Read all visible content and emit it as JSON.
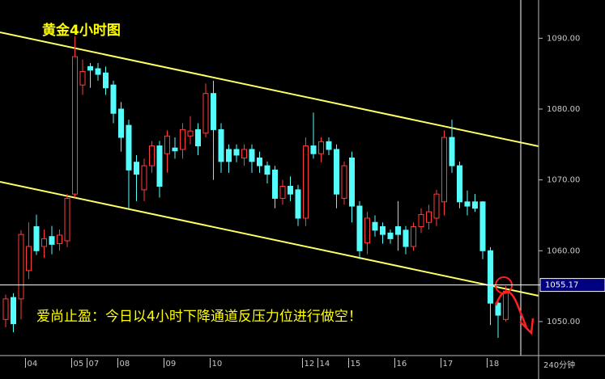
{
  "chart_data": {
    "type": "candlestick",
    "title": "黄金4小时图",
    "annotation": "爱尚止盈：今日以4小时下降通道反压力位进行做空！",
    "x_unit_label": "240分钟",
    "up_color": "#ff3c3c",
    "down_color": "#54fcfc",
    "categories": [
      null,
      null,
      null,
      "04",
      null,
      null,
      null,
      null,
      null,
      "05",
      null,
      "07",
      null,
      null,
      null,
      "08",
      null,
      null,
      null,
      null,
      null,
      "09",
      null,
      null,
      null,
      null,
      null,
      "10",
      null,
      null,
      null,
      null,
      null,
      null,
      null,
      null,
      null,
      null,
      null,
      "12",
      null,
      "14",
      null,
      null,
      null,
      "15",
      null,
      null,
      null,
      null,
      null,
      "16",
      null,
      null,
      null,
      null,
      null,
      "17",
      null,
      null,
      null,
      null,
      null,
      "18",
      null,
      null
    ],
    "open": [
      1050.3,
      1053.4,
      1053.2,
      1057.2,
      1063.4,
      1060.6,
      1062,
      1061,
      1061.4,
      1068,
      1083.4,
      1086,
      1085.7,
      1085.1,
      1083.4,
      1080,
      1077.7,
      1072.5,
      1068.6,
      1072,
      1074.8,
      1073.7,
      1074.5,
      1074.3,
      1076.2,
      1077.1,
      1076.6,
      1082.2,
      1077.1,
      1074.3,
      1074.3,
      1073.1,
      1074.3,
      1073.1,
      1072,
      1071.4,
      1067.4,
      1069.1,
      1068.6,
      1064.6,
      1074.8,
      1073.7,
      1075.4,
      1074.3,
      1067.4,
      1073.1,
      1066.3,
      1061.1,
      1064,
      1063.4,
      1062.5,
      1063.4,
      1062.9,
      1060.6,
      1063.4,
      1064,
      1064.6,
      1066.9,
      1076,
      1072,
      1066.9,
      1066.9,
      1066.9,
      1060,
      1052.6,
      1050.3
    ],
    "high": [
      1053.8,
      1054,
      1062.9,
      1064,
      1065.1,
      1063,
      1063.5,
      1063,
      1068,
      1090.3,
      1087,
      1086.5,
      1086.5,
      1086,
      1084,
      1081,
      1078.5,
      1073.5,
      1073,
      1075.5,
      1075.5,
      1077,
      1076,
      1078,
      1079,
      1078,
      1083.6,
      1084,
      1078,
      1075,
      1075,
      1075,
      1075,
      1074,
      1072.6,
      1072,
      1070,
      1070.5,
      1069.3,
      1076,
      1079.5,
      1076,
      1076,
      1075,
      1072.6,
      1074,
      1067,
      1065.5,
      1065,
      1064,
      1063,
      1067,
      1063.5,
      1064,
      1066,
      1066.5,
      1068.6,
      1077,
      1078.5,
      1072.6,
      1068.5,
      1068,
      1067,
      1060.5,
      1053,
      1055
    ],
    "low": [
      1049.2,
      1048.5,
      1050.3,
      1056,
      1059.4,
      1059,
      1059.5,
      1060,
      1060.5,
      1067.5,
      1082,
      1083,
      1084,
      1082,
      1078,
      1074,
      1066,
      1067,
      1067,
      1071,
      1067.5,
      1071,
      1073,
      1073,
      1075,
      1073.5,
      1076,
      1070,
      1071,
      1071,
      1072.5,
      1072,
      1071,
      1071,
      1069.5,
      1066,
      1066.5,
      1067,
      1063.5,
      1063.5,
      1073,
      1072.5,
      1073.5,
      1066,
      1066.5,
      1064,
      1058.8,
      1059.5,
      1062,
      1061,
      1061,
      1060,
      1059.5,
      1060,
      1062.5,
      1063,
      1063.5,
      1065,
      1071,
      1066,
      1065,
      1065.5,
      1058.8,
      1049.5,
      1047.7,
      1050
    ],
    "close": [
      1053.2,
      1049.7,
      1062.3,
      1060.6,
      1060,
      1061.7,
      1060.9,
      1062.2,
      1067.4,
      1087.4,
      1085.3,
      1085.5,
      1084.9,
      1083,
      1079.4,
      1076,
      1071.4,
      1070.8,
      1072,
      1074.8,
      1069.1,
      1076.2,
      1074.1,
      1077.1,
      1076.9,
      1074.8,
      1082.2,
      1077.1,
      1072.6,
      1072.6,
      1073.5,
      1074.3,
      1072.6,
      1072,
      1070.8,
      1067.4,
      1069.1,
      1068,
      1064.6,
      1074.8,
      1073.7,
      1075.4,
      1074.3,
      1068,
      1072,
      1066.3,
      1060,
      1064.6,
      1062.9,
      1062.3,
      1061.7,
      1062.3,
      1060.6,
      1063.4,
      1065.1,
      1065.5,
      1068,
      1076,
      1072,
      1066.9,
      1066.3,
      1066,
      1060,
      1052.6,
      1050.9,
      1054.3
    ],
    "current_price": 1055.17,
    "ylim": [
      1045.2,
      1095.4
    ],
    "yticks": [
      {
        "value": 1050,
        "label": "1050.00"
      },
      {
        "value": 1060,
        "label": "1060.00"
      },
      {
        "value": 1070,
        "label": "1070.00"
      },
      {
        "value": 1080,
        "label": "1080.00"
      },
      {
        "value": 1090,
        "label": "1090.00"
      }
    ]
  }
}
